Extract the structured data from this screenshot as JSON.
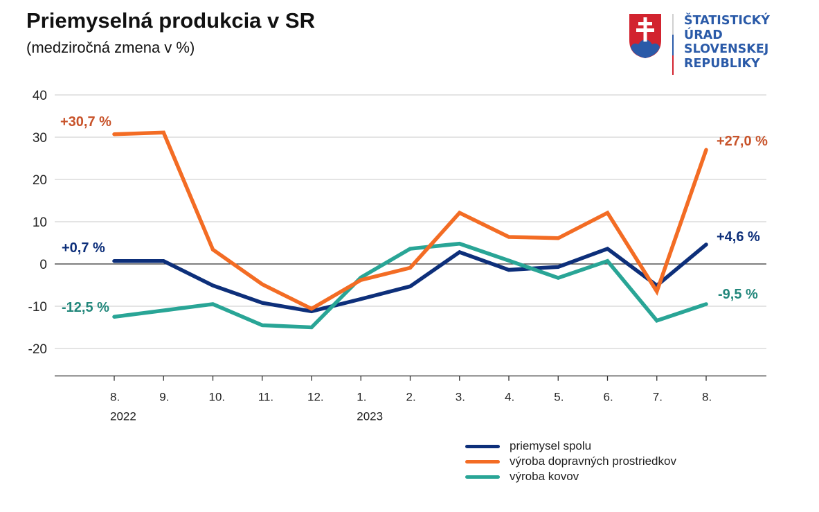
{
  "header": {
    "title": "Priemyselná produkcia v SR",
    "subtitle": "(medziročná zmena v %)"
  },
  "logo": {
    "lines": [
      "ŠTATISTICKÝ",
      "ÚRAD",
      "SLOVENSKEJ",
      "REPUBLIKY"
    ],
    "colors": {
      "text": "#2a5aa8",
      "shield_red": "#d2232f",
      "shield_blue": "#2a5aa8"
    }
  },
  "chart_data": {
    "type": "line",
    "title": "Priemyselná produkcia v SR",
    "subtitle": "(medziročná zmena v %)",
    "xlabel": "",
    "ylabel": "",
    "categories": [
      "8.",
      "9.",
      "10.",
      "11.",
      "12.",
      "1.",
      "2.",
      "3.",
      "4.",
      "5.",
      "6.",
      "7.",
      "8."
    ],
    "year_labels": [
      {
        "index": 0,
        "label": "2022"
      },
      {
        "index": 5,
        "label": "2023"
      }
    ],
    "ylim": [
      -26.5,
      40
    ],
    "yticks": [
      40,
      30,
      20,
      10,
      0,
      -10,
      -20
    ],
    "ytick_labels": [
      "40",
      "30",
      "20",
      "10",
      "0",
      "-10",
      "-20"
    ],
    "grid": true,
    "legend_position": "bottom-right",
    "series": [
      {
        "name": "priemysel spolu",
        "color": "#0d2f7a",
        "values": [
          0.7,
          0.7,
          -5.1,
          -9.2,
          -11.2,
          -8.3,
          -5.3,
          2.8,
          -1.4,
          -0.7,
          3.6,
          -5.1,
          4.6
        ],
        "start_label": "+0,7 %",
        "end_label": "+4,6 %",
        "label_color": "#0d2f7a"
      },
      {
        "name": "výroba dopravných prostriedkov",
        "color": "#f36c24",
        "values": [
          30.7,
          31.1,
          3.4,
          -4.8,
          -10.6,
          -3.8,
          -0.9,
          12.1,
          6.4,
          6.1,
          12.1,
          -6.5,
          27.0
        ],
        "start_label": "+30,7 %",
        "end_label": "+27,0 %",
        "label_color": "#c8532a"
      },
      {
        "name": "výroba kovov",
        "color": "#29a596",
        "values": [
          -12.5,
          -11.0,
          -9.5,
          -14.5,
          -15.0,
          -3.2,
          3.6,
          4.8,
          0.8,
          -3.3,
          0.7,
          -13.4,
          -9.5
        ],
        "start_label": "-12,5 %",
        "end_label": "-9,5 %",
        "label_color": "#22877b"
      }
    ]
  }
}
